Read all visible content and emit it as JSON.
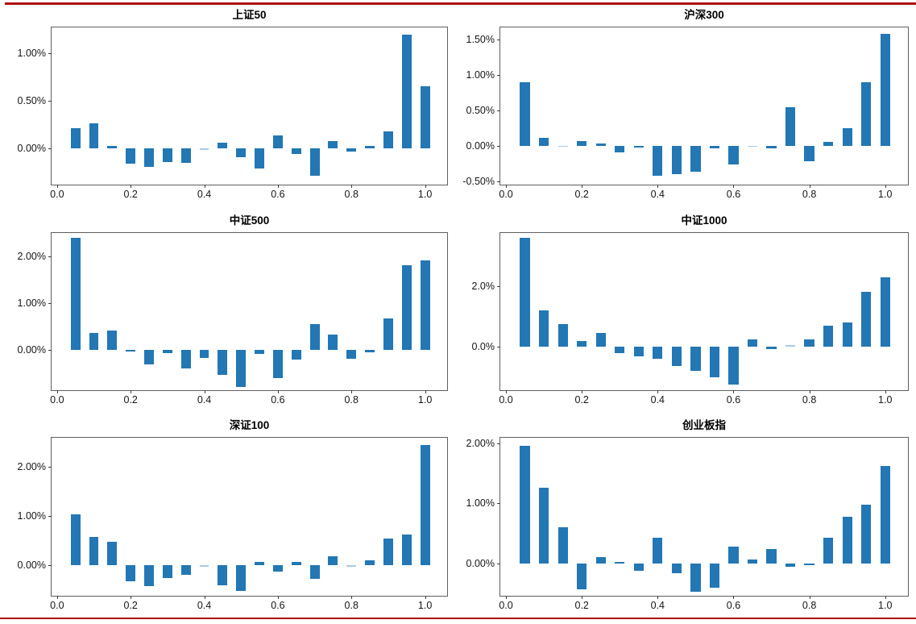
{
  "figure": {
    "top_rule_color": "#ad0d0d",
    "bottom_rule_color": "#ad0d0d",
    "bar_color": "#2277b4",
    "bar_color_faint": "#a9cbe4",
    "background_color": "#ffffff"
  },
  "chart_data": [
    {
      "type": "bar",
      "title": "上证50",
      "x": [
        0.05,
        0.1,
        0.15,
        0.2,
        0.25,
        0.3,
        0.35,
        0.4,
        0.45,
        0.5,
        0.55,
        0.6,
        0.65,
        0.7,
        0.75,
        0.8,
        0.85,
        0.9,
        0.95,
        1.0
      ],
      "values": [
        0.21,
        0.26,
        0.03,
        -0.16,
        -0.19,
        -0.14,
        -0.15,
        -0.01,
        0.06,
        -0.09,
        -0.21,
        0.14,
        -0.06,
        -0.29,
        0.08,
        -0.03,
        0.03,
        0.18,
        1.19,
        0.65
      ],
      "xlabel": "",
      "ylabel": "",
      "xlim": [
        -0.015,
        1.06
      ],
      "ylim": [
        -0.38,
        1.27
      ],
      "xticks": [
        {
          "v": 0.0,
          "label": "0.0"
        },
        {
          "v": 0.2,
          "label": "0.2"
        },
        {
          "v": 0.4,
          "label": "0.4"
        },
        {
          "v": 0.6,
          "label": "0.6"
        },
        {
          "v": 0.8,
          "label": "0.8"
        },
        {
          "v": 1.0,
          "label": "1.0"
        }
      ],
      "yticks": [
        {
          "v": 1.0,
          "label": "1.00%"
        },
        {
          "v": 0.5,
          "label": "0.50%"
        },
        {
          "v": 0.0,
          "label": "0.00%"
        }
      ],
      "grid": false,
      "legend": null
    },
    {
      "type": "bar",
      "title": "沪深300",
      "x": [
        0.05,
        0.1,
        0.15,
        0.2,
        0.25,
        0.3,
        0.35,
        0.4,
        0.45,
        0.5,
        0.55,
        0.6,
        0.65,
        0.7,
        0.75,
        0.8,
        0.85,
        0.9,
        0.95,
        1.0
      ],
      "values": [
        0.9,
        0.11,
        -0.015,
        0.06,
        0.03,
        -0.1,
        -0.03,
        -0.42,
        -0.4,
        -0.37,
        -0.04,
        -0.26,
        -0.01,
        -0.04,
        0.54,
        -0.22,
        0.05,
        0.25,
        0.9,
        1.58
      ],
      "xlabel": "",
      "ylabel": "",
      "xlim": [
        -0.015,
        1.06
      ],
      "ylim": [
        -0.55,
        1.67
      ],
      "xticks": [
        {
          "v": 0.0,
          "label": "0.0"
        },
        {
          "v": 0.2,
          "label": "0.2"
        },
        {
          "v": 0.4,
          "label": "0.4"
        },
        {
          "v": 0.6,
          "label": "0.6"
        },
        {
          "v": 0.8,
          "label": "0.8"
        },
        {
          "v": 1.0,
          "label": "1.0"
        }
      ],
      "yticks": [
        {
          "v": 1.5,
          "label": "1.50%"
        },
        {
          "v": 1.0,
          "label": "1.00%"
        },
        {
          "v": 0.5,
          "label": "0.50%"
        },
        {
          "v": 0.0,
          "label": "0.00%"
        },
        {
          "v": -0.5,
          "label": "-0.50%"
        }
      ],
      "grid": false,
      "legend": null
    },
    {
      "type": "bar",
      "title": "中证500",
      "x": [
        0.05,
        0.1,
        0.15,
        0.2,
        0.25,
        0.3,
        0.35,
        0.4,
        0.45,
        0.5,
        0.55,
        0.6,
        0.65,
        0.7,
        0.75,
        0.8,
        0.85,
        0.9,
        0.95,
        1.0
      ],
      "values": [
        2.38,
        0.37,
        0.42,
        -0.03,
        -0.3,
        -0.07,
        -0.38,
        -0.17,
        -0.53,
        -0.78,
        -0.08,
        -0.6,
        -0.2,
        0.55,
        0.33,
        -0.18,
        -0.04,
        0.67,
        1.8,
        1.9
      ],
      "xlabel": "",
      "ylabel": "",
      "xlim": [
        -0.015,
        1.06
      ],
      "ylim": [
        -0.85,
        2.49
      ],
      "xticks": [
        {
          "v": 0.0,
          "label": "0.0"
        },
        {
          "v": 0.2,
          "label": "0.2"
        },
        {
          "v": 0.4,
          "label": "0.4"
        },
        {
          "v": 0.6,
          "label": "0.6"
        },
        {
          "v": 0.8,
          "label": "0.8"
        },
        {
          "v": 1.0,
          "label": "1.0"
        }
      ],
      "yticks": [
        {
          "v": 2.0,
          "label": "2.00%"
        },
        {
          "v": 1.0,
          "label": "1.00%"
        },
        {
          "v": 0.0,
          "label": "0.00%"
        }
      ],
      "grid": false,
      "legend": null
    },
    {
      "type": "bar",
      "title": "中证1000",
      "x": [
        0.05,
        0.1,
        0.15,
        0.2,
        0.25,
        0.3,
        0.35,
        0.4,
        0.45,
        0.5,
        0.55,
        0.6,
        0.65,
        0.7,
        0.75,
        0.8,
        0.85,
        0.9,
        0.95,
        1.0
      ],
      "values": [
        3.6,
        1.2,
        0.75,
        0.18,
        0.45,
        -0.22,
        -0.32,
        -0.42,
        -0.65,
        -0.8,
        -1.03,
        -1.25,
        0.22,
        -0.1,
        0.015,
        0.24,
        0.69,
        0.8,
        1.8,
        2.28
      ],
      "xlabel": "",
      "ylabel": "",
      "xlim": [
        -0.015,
        1.06
      ],
      "ylim": [
        -1.45,
        3.75
      ],
      "xticks": [
        {
          "v": 0.0,
          "label": "0.0"
        },
        {
          "v": 0.2,
          "label": "0.2"
        },
        {
          "v": 0.4,
          "label": "0.4"
        },
        {
          "v": 0.6,
          "label": "0.6"
        },
        {
          "v": 0.8,
          "label": "0.8"
        },
        {
          "v": 1.0,
          "label": "1.0"
        }
      ],
      "yticks": [
        {
          "v": 2.0,
          "label": "2.0%"
        },
        {
          "v": 0.0,
          "label": "0.0%"
        }
      ],
      "grid": false,
      "legend": null
    },
    {
      "type": "bar",
      "title": "深证100",
      "x": [
        0.05,
        0.1,
        0.15,
        0.2,
        0.25,
        0.3,
        0.35,
        0.4,
        0.45,
        0.5,
        0.55,
        0.6,
        0.65,
        0.7,
        0.75,
        0.8,
        0.85,
        0.9,
        0.95,
        1.0
      ],
      "values": [
        1.04,
        0.57,
        0.47,
        -0.33,
        -0.43,
        -0.26,
        -0.2,
        -0.015,
        -0.4,
        -0.52,
        0.07,
        -0.13,
        0.06,
        -0.27,
        0.19,
        -0.015,
        0.1,
        0.55,
        0.63,
        2.45
      ],
      "xlabel": "",
      "ylabel": "",
      "xlim": [
        -0.015,
        1.06
      ],
      "ylim": [
        -0.62,
        2.59
      ],
      "xticks": [
        {
          "v": 0.0,
          "label": "0.0"
        },
        {
          "v": 0.2,
          "label": "0.2"
        },
        {
          "v": 0.4,
          "label": "0.4"
        },
        {
          "v": 0.6,
          "label": "0.6"
        },
        {
          "v": 0.8,
          "label": "0.8"
        },
        {
          "v": 1.0,
          "label": "1.0"
        }
      ],
      "yticks": [
        {
          "v": 2.0,
          "label": "2.00%"
        },
        {
          "v": 1.0,
          "label": "1.00%"
        },
        {
          "v": 0.0,
          "label": "0.00%"
        }
      ],
      "grid": false,
      "legend": null
    },
    {
      "type": "bar",
      "title": "创业板指",
      "x": [
        0.05,
        0.1,
        0.15,
        0.2,
        0.25,
        0.3,
        0.35,
        0.4,
        0.45,
        0.5,
        0.55,
        0.6,
        0.65,
        0.7,
        0.75,
        0.8,
        0.85,
        0.9,
        0.95,
        1.0
      ],
      "values": [
        1.95,
        1.26,
        0.6,
        -0.43,
        0.11,
        0.02,
        -0.13,
        0.43,
        -0.17,
        -0.47,
        -0.41,
        0.28,
        0.07,
        0.24,
        -0.06,
        -0.03,
        0.42,
        0.78,
        0.98,
        1.62
      ],
      "xlabel": "",
      "ylabel": "",
      "xlim": [
        -0.015,
        1.06
      ],
      "ylim": [
        -0.54,
        2.09
      ],
      "xticks": [
        {
          "v": 0.0,
          "label": "0.0"
        },
        {
          "v": 0.2,
          "label": "0.2"
        },
        {
          "v": 0.4,
          "label": "0.4"
        },
        {
          "v": 0.6,
          "label": "0.6"
        },
        {
          "v": 0.8,
          "label": "0.8"
        },
        {
          "v": 1.0,
          "label": "1.0"
        }
      ],
      "yticks": [
        {
          "v": 2.0,
          "label": "2.00%"
        },
        {
          "v": 1.0,
          "label": "1.00%"
        },
        {
          "v": 0.0,
          "label": "0.00%"
        }
      ],
      "grid": false,
      "legend": null
    }
  ]
}
